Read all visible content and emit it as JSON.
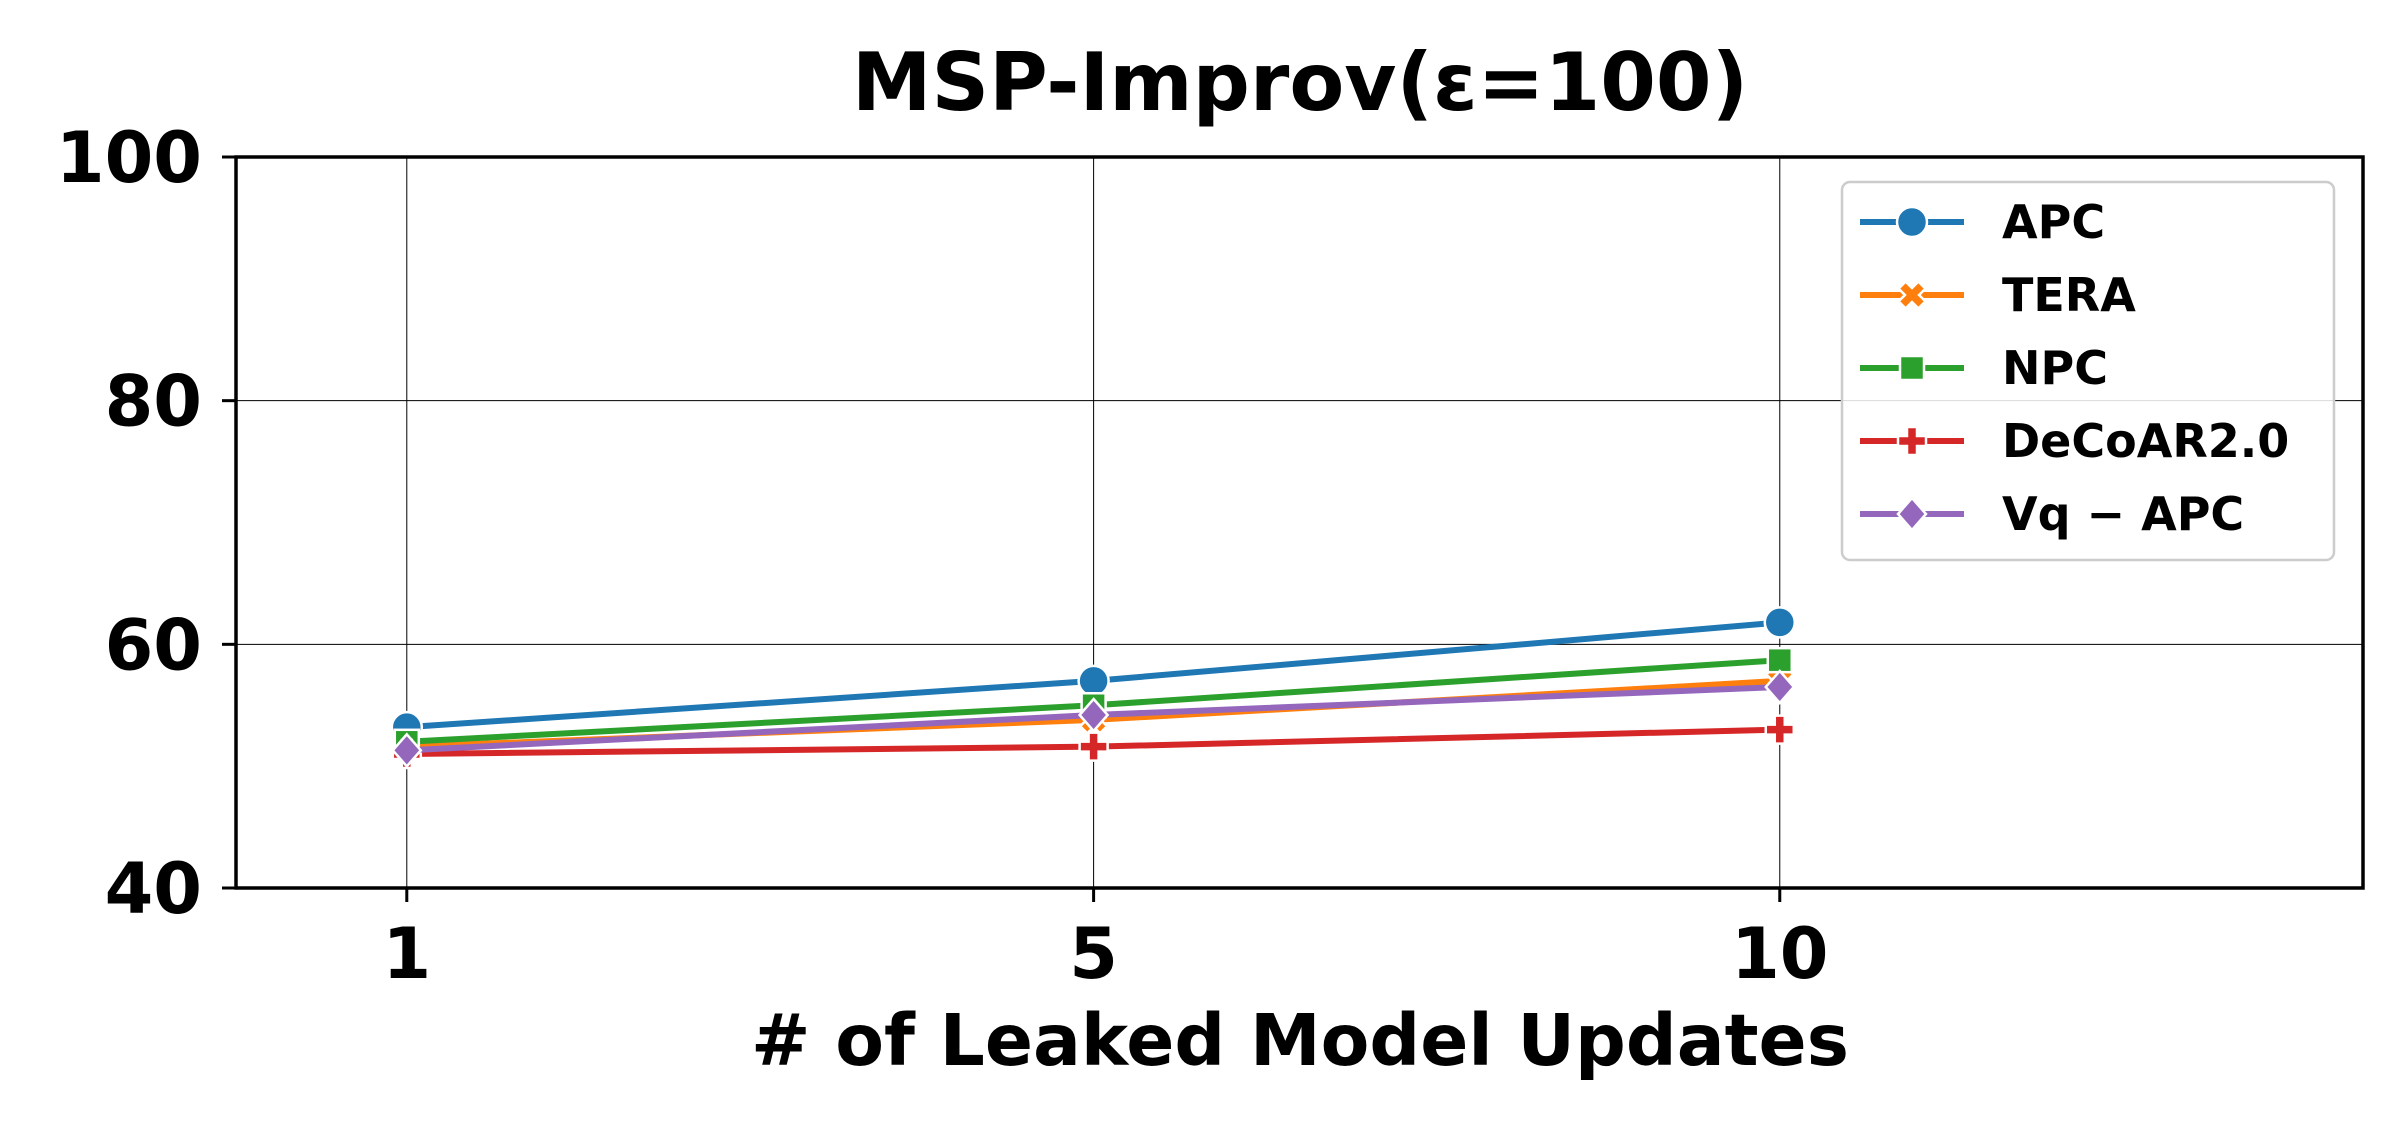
{
  "chart_data": {
    "type": "line",
    "title": "MSP-Improv(ε=100)",
    "xlabel": "# of Leaked Model Updates",
    "ylabel": "",
    "x": [
      "1",
      "5",
      "10"
    ],
    "ylim": [
      40,
      100
    ],
    "yticks": [
      40,
      60,
      80,
      100
    ],
    "grid": true,
    "legend_position": "top-right",
    "series": [
      {
        "name": "APC",
        "color": "#1f77b4",
        "marker": "circle",
        "values": [
          53.2,
          57.0,
          61.8
        ]
      },
      {
        "name": "TERA",
        "color": "#ff7f0e",
        "marker": "x-filled",
        "values": [
          51.6,
          53.8,
          57.0
        ]
      },
      {
        "name": "NPC",
        "color": "#2ca02c",
        "marker": "square",
        "values": [
          52.0,
          55.0,
          58.7
        ]
      },
      {
        "name": "DeCoAR2.0",
        "color": "#d62728",
        "marker": "plus-filled",
        "values": [
          51.0,
          51.6,
          53.0
        ]
      },
      {
        "name": "Vq − APC",
        "color": "#9467bd",
        "marker": "diamond",
        "values": [
          51.3,
          54.2,
          56.5
        ]
      }
    ]
  }
}
